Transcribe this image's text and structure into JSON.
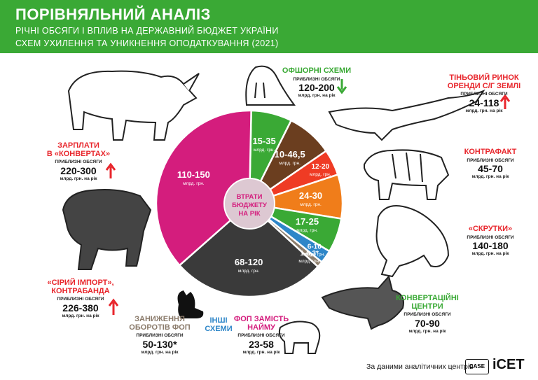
{
  "header": {
    "title": "ПОРІВНЯЛЬНИЙ АНАЛІЗ",
    "subtitle_line1": "РІЧНІ ОБСЯГИ І ВПЛИВ НА ДЕРЖАВНИЙ БЮДЖЕТ УКРАЇНИ",
    "subtitle_line2": "СХЕМ УХИЛЕННЯ ТА УНИКНЕННЯ ОПОДАТКУВАННЯ  (2021)"
  },
  "center_label": [
    "ВТРАТИ",
    "БЮДЖЕТУ",
    "НА РІК"
  ],
  "chart_data": {
    "type": "pie",
    "unit": "млрд. грн.",
    "slices": [
      {
        "label": "15-35",
        "value": 25,
        "color": "#3aa935"
      },
      {
        "label": "10-46,5",
        "value": 28.25,
        "color": "#6b3e1f"
      },
      {
        "label": "12-20",
        "value": 16,
        "color": "#ef3b24"
      },
      {
        "label": "24-30",
        "value": 27,
        "color": "#f07d1a"
      },
      {
        "label": "17-25",
        "value": 21,
        "color": "#3aa935"
      },
      {
        "label": "6-10",
        "value": 8,
        "color": "#2e86c8"
      },
      {
        "label": "1-6,3",
        "asterisk": "*",
        "value": 3.65,
        "color": "#8c7d6b"
      },
      {
        "label": "68-120",
        "value": 94,
        "color": "#3a3a3a"
      },
      {
        "label": "110-150",
        "value": 130,
        "color": "#d41d7d"
      }
    ]
  },
  "categories": {
    "offshore": {
      "name": "ОФШОРНІ СХЕМИ",
      "approx": "ПРИБЛИЗНІ ОБСЯГИ",
      "range": "120-200",
      "unit": "млрд. грн. на рік"
    },
    "shadow_land": {
      "name1": "ТІНЬОВИЙ РИНОК",
      "name2": "ОРЕНДИ С/Г ЗЕМЛІ",
      "approx": "ПРИБЛИЗНІ ОБСЯГИ",
      "range": "24-118",
      "unit": "млрд. грн. на рік"
    },
    "counterfeit": {
      "name": "КОНТРАФАКТ",
      "approx": "ПРИБЛИЗНІ ОБСЯГИ",
      "range": "45-70",
      "unit": "млрд. грн. на рік"
    },
    "twists": {
      "name": "«СКРУТКИ»",
      "approx": "ПРИБЛИЗНІ ОБСЯГИ",
      "range": "140-180",
      "unit": "млрд. грн. на рік"
    },
    "conversion": {
      "name1": "КОНВЕРТАЦІЙНІ",
      "name2": "ЦЕНТРИ",
      "approx": "ПРИБЛИЗНІ ОБСЯГИ",
      "range": "70-90",
      "unit": "млрд. грн. на рік"
    },
    "fop_hiring": {
      "name1": "ФОП ЗАМІСТЬ",
      "name2": "НАЙМУ",
      "approx": "ПРИБЛИЗНІ ОБСЯГИ",
      "range": "23-58",
      "unit": "млрд. грн. на рік"
    },
    "other": {
      "name1": "ІНШІ",
      "name2": "СХЕМИ"
    },
    "fop_underreport": {
      "name1": "ЗАНИЖЕННЯ",
      "name2": "ОБОРОТІВ ФОП",
      "approx": "ПРИБЛИЗНІ ОБСЯГИ",
      "range": "50-130",
      "asterisk": "*",
      "unit": "млрд. грн. на рік"
    },
    "grey_import": {
      "name1": "«СІРИЙ ІМПОРТ»,",
      "name2": "КОНТРАБАНДА",
      "approx": "ПРИБЛИЗНІ ОБСЯГИ",
      "range": "226-380",
      "unit": "млрд. грн. на рік"
    },
    "salaries": {
      "name1": "ЗАРПЛАТИ",
      "name2": "В «КОНВЕРТАХ»",
      "approx": "ПРИБЛИЗНІ ОБСЯГИ",
      "range": "220-300",
      "unit": "млрд. грн. на рік"
    }
  },
  "footer": {
    "text": "За даними аналітичних центрів",
    "logo1": "CASE",
    "logo2": "iCET"
  }
}
